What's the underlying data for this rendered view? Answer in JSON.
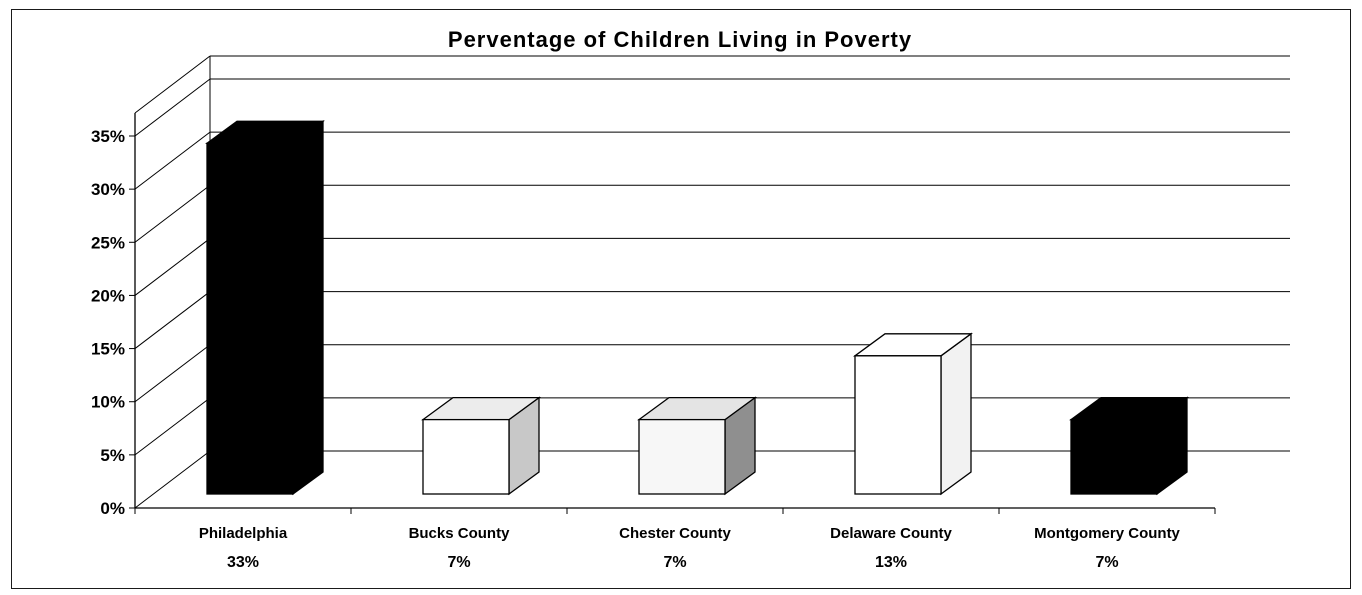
{
  "chart_data": {
    "type": "bar",
    "title": "Perventage of Children Living in Poverty",
    "categories": [
      "Philadelphia",
      "Bucks County",
      "Chester County",
      "Delaware County",
      "Montgomery County"
    ],
    "values": [
      33,
      7,
      7,
      13,
      7
    ],
    "value_labels": [
      "33%",
      "7%",
      "7%",
      "13%",
      "7%"
    ],
    "ylim": [
      0,
      35
    ],
    "y_ticks": [
      0,
      5,
      10,
      15,
      20,
      25,
      30,
      35
    ],
    "y_tick_labels": [
      "0%",
      "5%",
      "10%",
      "15%",
      "20%",
      "25%",
      "30%",
      "35%"
    ],
    "xlabel": "",
    "ylabel": "",
    "grid": true,
    "three_d": true,
    "bar_colors": [
      {
        "front": "#000000",
        "top": "#000000",
        "side": "#000000"
      },
      {
        "front": "#ffffff",
        "top": "#ececec",
        "side": "#c8c8c8"
      },
      {
        "front": "#f7f7f7",
        "top": "#e4e4e4",
        "side": "#8f8f8f"
      },
      {
        "front": "#ffffff",
        "top": "#ffffff",
        "side": "#f2f2f2"
      },
      {
        "front": "#000000",
        "top": "#000000",
        "side": "#000000"
      }
    ]
  }
}
